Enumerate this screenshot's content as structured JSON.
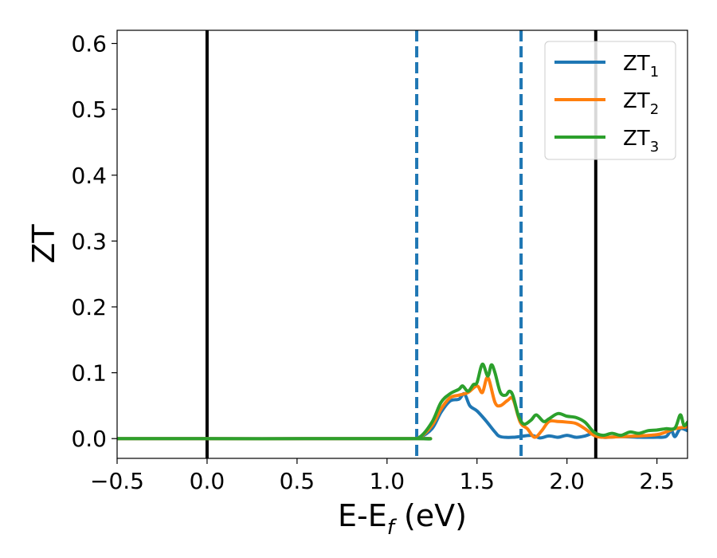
{
  "chart_data": {
    "type": "line",
    "xlabel": "E-E",
    "xlabel_sub": "f",
    "xlabel_unit": " (eV)",
    "ylabel": "ZT",
    "xlim": [
      -0.5,
      2.67
    ],
    "ylim": [
      -0.03,
      0.62
    ],
    "x_ticks": [
      -0.5,
      0.0,
      0.5,
      1.0,
      1.5,
      2.0,
      2.5
    ],
    "x_tick_labels": [
      "−0.5",
      "0.0",
      "0.5",
      "1.0",
      "1.5",
      "2.0",
      "2.5"
    ],
    "y_ticks": [
      0.0,
      0.1,
      0.2,
      0.3,
      0.4,
      0.5,
      0.6
    ],
    "y_tick_labels": [
      "0.0",
      "0.1",
      "0.2",
      "0.3",
      "0.4",
      "0.5",
      "0.6"
    ],
    "legend_position": "upper-right",
    "vlines": [
      {
        "x": 0.0,
        "color": "#000000",
        "style": "solid"
      },
      {
        "x": 2.16,
        "color": "#000000",
        "style": "solid"
      },
      {
        "x": 1.165,
        "color": "#1f77b4",
        "style": "dashed"
      },
      {
        "x": 1.745,
        "color": "#1f77b4",
        "style": "dashed"
      }
    ],
    "series": [
      {
        "name": "ZT",
        "name_sub": "1",
        "color": "#1f77b4",
        "points": [
          [
            -0.5,
            0
          ],
          [
            1.1,
            0
          ],
          [
            1.18,
            0.002
          ],
          [
            1.25,
            0.015
          ],
          [
            1.3,
            0.04
          ],
          [
            1.35,
            0.057
          ],
          [
            1.4,
            0.06
          ],
          [
            1.43,
            0.068
          ],
          [
            1.46,
            0.05
          ],
          [
            1.5,
            0.042
          ],
          [
            1.55,
            0.027
          ],
          [
            1.6,
            0.01
          ],
          [
            1.63,
            0.003
          ],
          [
            1.7,
            0.002
          ],
          [
            1.8,
            0.005
          ],
          [
            1.85,
            0.001
          ],
          [
            1.9,
            0.004
          ],
          [
            1.95,
            0.002
          ],
          [
            2.0,
            0.005
          ],
          [
            2.05,
            0.002
          ],
          [
            2.1,
            0.004
          ],
          [
            2.15,
            0.008
          ],
          [
            2.2,
            0.002
          ],
          [
            2.3,
            0.003
          ],
          [
            2.4,
            0.002
          ],
          [
            2.5,
            0.002
          ],
          [
            2.55,
            0.003
          ],
          [
            2.58,
            0.012
          ],
          [
            2.6,
            0.003
          ],
          [
            2.63,
            0.015
          ],
          [
            2.67,
            0.012
          ]
        ]
      },
      {
        "name": "ZT",
        "name_sub": "2",
        "color": "#ff7f0e",
        "points": [
          [
            -0.5,
            0
          ],
          [
            1.1,
            0
          ],
          [
            1.18,
            0.002
          ],
          [
            1.25,
            0.02
          ],
          [
            1.3,
            0.045
          ],
          [
            1.35,
            0.062
          ],
          [
            1.4,
            0.066
          ],
          [
            1.45,
            0.07
          ],
          [
            1.5,
            0.08
          ],
          [
            1.53,
            0.07
          ],
          [
            1.56,
            0.093
          ],
          [
            1.6,
            0.055
          ],
          [
            1.63,
            0.05
          ],
          [
            1.67,
            0.058
          ],
          [
            1.7,
            0.06
          ],
          [
            1.74,
            0.025
          ],
          [
            1.78,
            0.015
          ],
          [
            1.82,
            0.002
          ],
          [
            1.86,
            0.012
          ],
          [
            1.9,
            0.026
          ],
          [
            1.95,
            0.026
          ],
          [
            2.0,
            0.025
          ],
          [
            2.05,
            0.023
          ],
          [
            2.1,
            0.015
          ],
          [
            2.15,
            0.005
          ],
          [
            2.2,
            0.002
          ],
          [
            2.3,
            0.003
          ],
          [
            2.4,
            0.004
          ],
          [
            2.5,
            0.006
          ],
          [
            2.55,
            0.01
          ],
          [
            2.6,
            0.015
          ],
          [
            2.67,
            0.018
          ]
        ]
      },
      {
        "name": "ZT",
        "name_sub": "3",
        "color": "#2ca02c",
        "points": [
          [
            -0.5,
            0
          ],
          [
            1.1,
            0
          ],
          [
            1.18,
            0.002
          ],
          [
            1.25,
            0.025
          ],
          [
            1.3,
            0.055
          ],
          [
            1.35,
            0.068
          ],
          [
            1.4,
            0.075
          ],
          [
            1.42,
            0.08
          ],
          [
            1.45,
            0.072
          ],
          [
            1.48,
            0.082
          ],
          [
            1.5,
            0.085
          ],
          [
            1.53,
            0.113
          ],
          [
            1.56,
            0.095
          ],
          [
            1.58,
            0.112
          ],
          [
            1.6,
            0.1
          ],
          [
            1.63,
            0.07
          ],
          [
            1.66,
            0.066
          ],
          [
            1.68,
            0.072
          ],
          [
            1.7,
            0.065
          ],
          [
            1.73,
            0.035
          ],
          [
            1.76,
            0.022
          ],
          [
            1.8,
            0.028
          ],
          [
            1.83,
            0.036
          ],
          [
            1.87,
            0.026
          ],
          [
            1.9,
            0.03
          ],
          [
            1.95,
            0.038
          ],
          [
            2.0,
            0.034
          ],
          [
            2.05,
            0.032
          ],
          [
            2.1,
            0.025
          ],
          [
            2.15,
            0.01
          ],
          [
            2.2,
            0.005
          ],
          [
            2.25,
            0.008
          ],
          [
            2.3,
            0.005
          ],
          [
            2.35,
            0.01
          ],
          [
            2.4,
            0.008
          ],
          [
            2.45,
            0.012
          ],
          [
            2.5,
            0.013
          ],
          [
            2.55,
            0.015
          ],
          [
            2.6,
            0.016
          ],
          [
            2.63,
            0.036
          ],
          [
            2.65,
            0.02
          ],
          [
            2.67,
            0.025
          ]
        ]
      }
    ]
  }
}
